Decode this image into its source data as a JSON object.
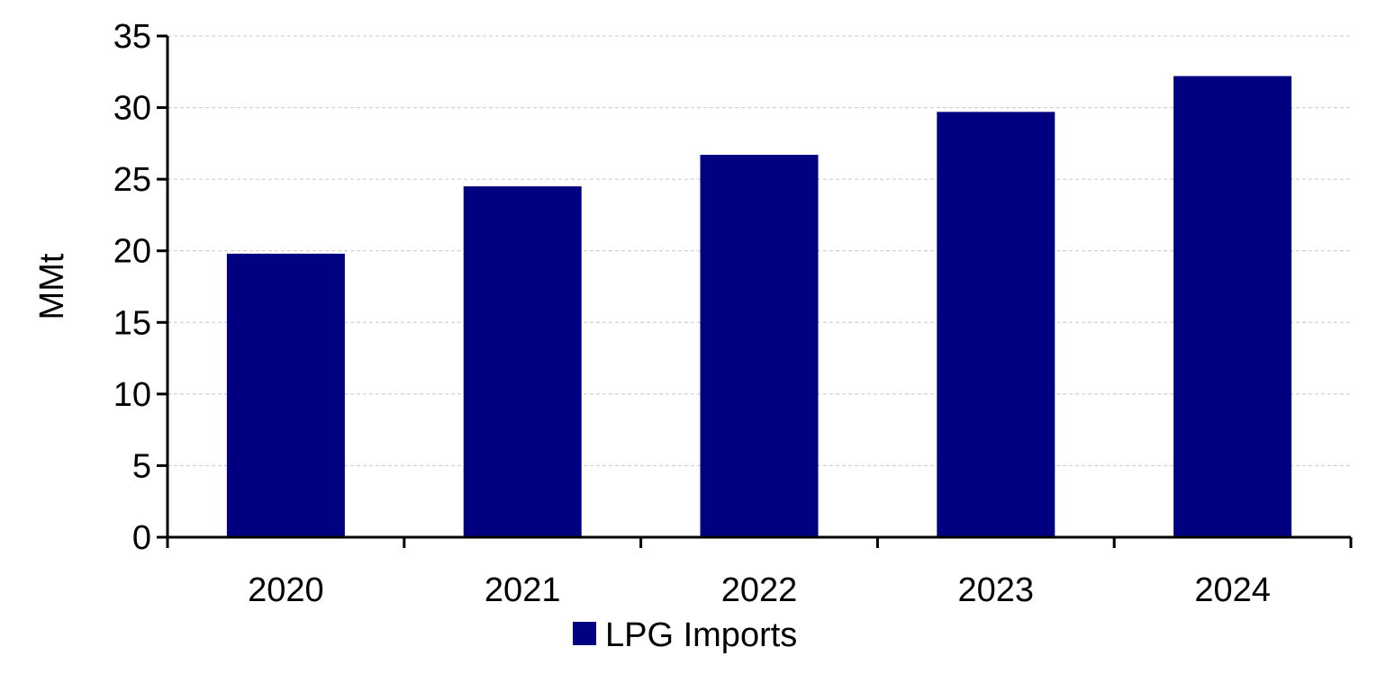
{
  "chart_data": {
    "type": "bar",
    "title": "",
    "xlabel": "",
    "ylabel": "MMt",
    "categories": [
      "2020",
      "2021",
      "2022",
      "2023",
      "2024"
    ],
    "series": [
      {
        "name": "LPG Imports",
        "color": "#000080",
        "values": [
          19.8,
          24.5,
          26.7,
          29.7,
          32.2
        ]
      }
    ],
    "ylim": [
      0,
      35
    ],
    "yticks": [
      0,
      5,
      10,
      15,
      20,
      25,
      30,
      35
    ],
    "grid": true,
    "legend_position": "bottom-center"
  }
}
